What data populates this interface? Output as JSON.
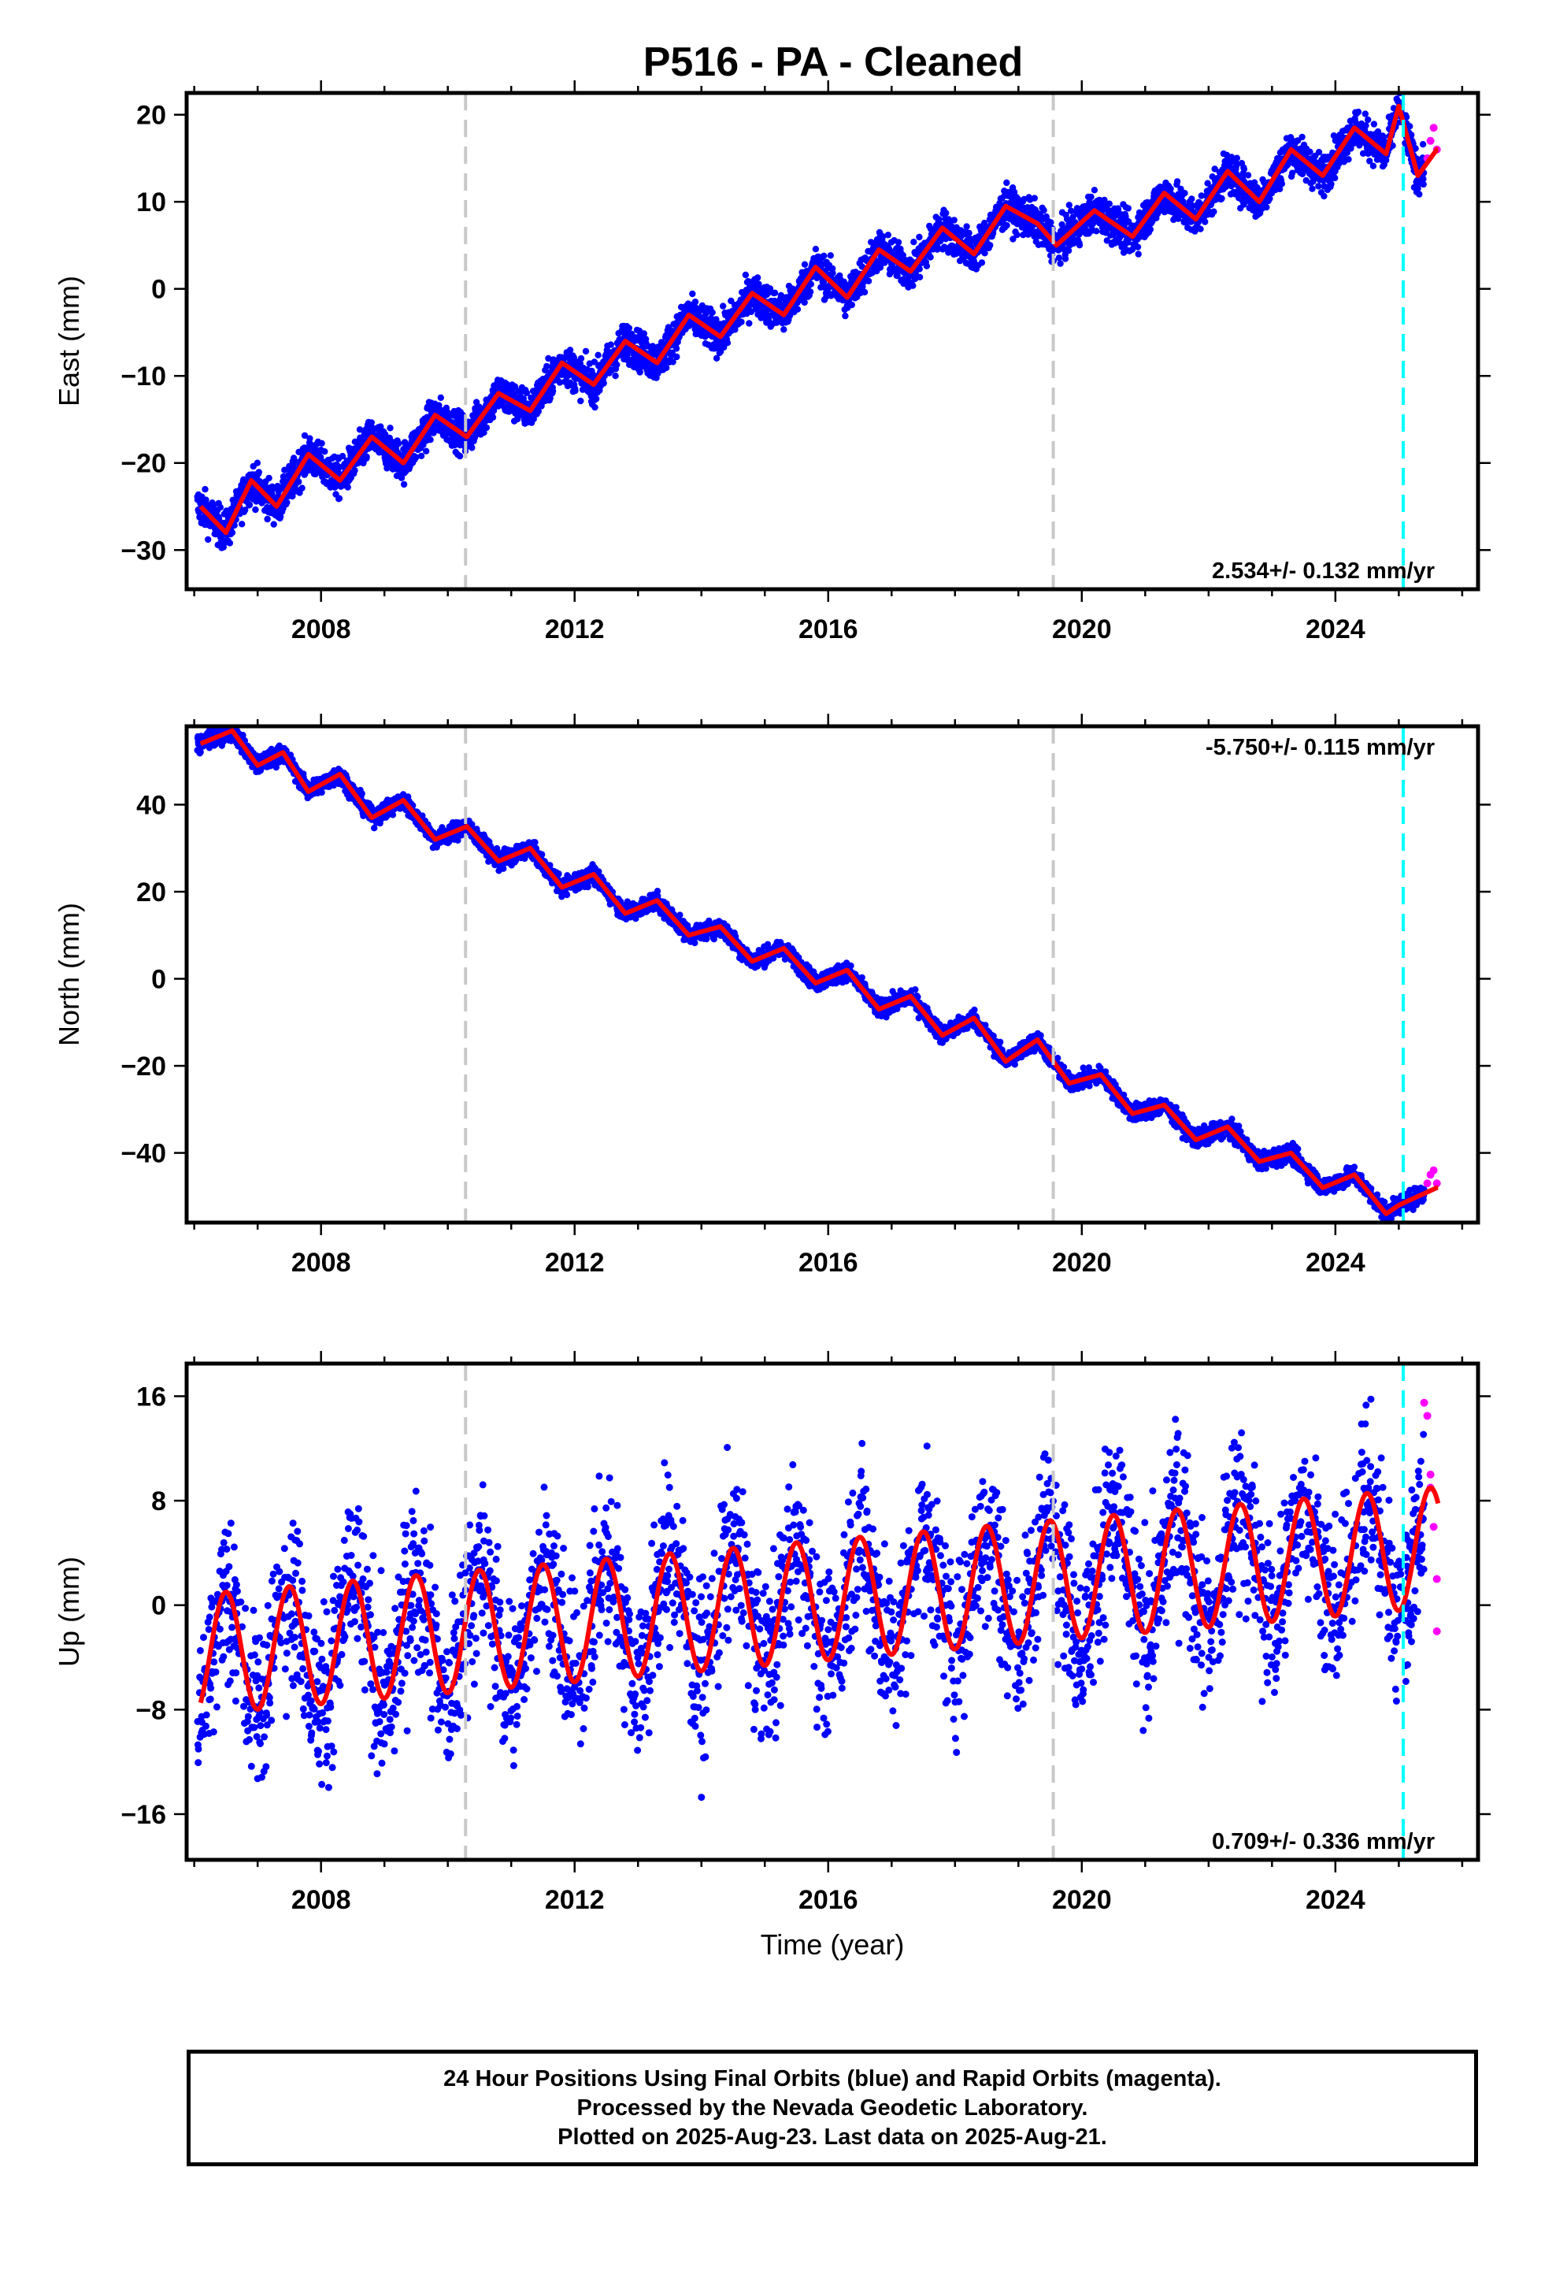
{
  "title": "P516  - PA - Cleaned",
  "colors": {
    "final_orbits": "#0000ff",
    "rapid_orbits": "#ff00ff",
    "model_fit": "#ff0000",
    "offset_equipment": "#c8c8c8",
    "offset_other": "#00ffff"
  },
  "footer": {
    "line1": "24 Hour Positions Using Final Orbits (blue) and Rapid Orbits (magenta).",
    "line2": "Processed by the Nevada Geodetic Laboratory.",
    "line3": "Plotted on 2025-Aug-23. Last data on 2025-Aug-21."
  },
  "chart_data": [
    {
      "type": "scatter",
      "component": "east",
      "ylabel": "East (mm)",
      "xlim": [
        2005.88,
        2026.25
      ],
      "ylim": [
        -34.5,
        22.5
      ],
      "xticks": [
        2008,
        2012,
        2016,
        2020,
        2024
      ],
      "yticks": [
        -30,
        -20,
        -10,
        0,
        10,
        20
      ],
      "rate_label": "2.534+/- 0.132 mm/yr",
      "rate_label_position": "bottom-right",
      "vertical_lines": [
        {
          "x": 2010.28,
          "style": "gray-dashed"
        },
        {
          "x": 2019.55,
          "style": "gray-dashed"
        },
        {
          "x": 2025.07,
          "style": "cyan-dashed"
        }
      ],
      "model_fit": {
        "x": [
          2006.1,
          2006.5,
          2006.9,
          2007.3,
          2007.8,
          2008.3,
          2008.8,
          2009.3,
          2009.8,
          2010.3,
          2010.8,
          2011.3,
          2011.8,
          2012.3,
          2012.8,
          2013.3,
          2013.8,
          2014.3,
          2014.8,
          2015.3,
          2015.8,
          2016.3,
          2016.8,
          2017.3,
          2017.8,
          2018.3,
          2018.8,
          2019.3,
          2019.6,
          2020.2,
          2020.8,
          2021.3,
          2021.8,
          2022.3,
          2022.8,
          2023.3,
          2023.8,
          2024.3,
          2024.8,
          2025.0,
          2025.3,
          2025.6
        ],
        "y": [
          -25,
          -28,
          -22,
          -25,
          -19,
          -22,
          -17,
          -20,
          -14.5,
          -17,
          -12,
          -14,
          -8.5,
          -11,
          -6,
          -8.5,
          -3,
          -5.5,
          -0.5,
          -3,
          2.5,
          -1,
          4.5,
          2,
          7,
          4,
          9.5,
          7.5,
          5,
          9,
          6,
          11,
          8,
          13.5,
          10,
          16,
          13,
          18.5,
          15.5,
          21,
          13,
          16
        ]
      },
      "rapid_points": {
        "x": [
          2025.45,
          2025.5,
          2025.55,
          2025.6
        ],
        "y": [
          15,
          17,
          18.5,
          16
        ]
      }
    },
    {
      "type": "scatter",
      "component": "north",
      "ylabel": "North (mm)",
      "xlim": [
        2005.88,
        2026.25
      ],
      "ylim": [
        -56,
        58
      ],
      "xticks": [
        2008,
        2012,
        2016,
        2020,
        2024
      ],
      "yticks": [
        -40,
        -20,
        0,
        20,
        40
      ],
      "rate_label": "-5.750+/- 0.115 mm/yr",
      "rate_label_position": "top-right",
      "vertical_lines": [
        {
          "x": 2010.28,
          "style": "gray-dashed"
        },
        {
          "x": 2019.55,
          "style": "gray-dashed"
        },
        {
          "x": 2025.07,
          "style": "cyan-dashed"
        }
      ],
      "model_fit": {
        "x": [
          2006.1,
          2006.6,
          2007.0,
          2007.4,
          2007.8,
          2008.3,
          2008.8,
          2009.3,
          2009.8,
          2010.3,
          2010.8,
          2011.3,
          2011.8,
          2012.3,
          2012.8,
          2013.3,
          2013.8,
          2014.3,
          2014.8,
          2015.3,
          2015.8,
          2016.3,
          2016.8,
          2017.3,
          2017.8,
          2018.3,
          2018.8,
          2019.3,
          2019.8,
          2020.3,
          2020.8,
          2021.3,
          2021.8,
          2022.3,
          2022.8,
          2023.3,
          2023.8,
          2024.3,
          2024.8,
          2025.0,
          2025.3,
          2025.6
        ],
        "y": [
          54,
          57,
          49,
          52,
          43,
          47,
          37,
          41,
          32,
          35,
          27,
          30,
          21,
          24,
          15,
          18,
          10,
          12,
          4,
          7,
          -1,
          2,
          -7,
          -4,
          -13,
          -9,
          -19,
          -14,
          -24,
          -22,
          -31,
          -29,
          -37,
          -34,
          -42,
          -40,
          -48,
          -45,
          -54,
          -52,
          -50,
          -48
        ]
      },
      "rapid_points": {
        "x": [
          2025.45,
          2025.5,
          2025.55,
          2025.6
        ],
        "y": [
          -47,
          -45,
          -44,
          -47
        ]
      }
    },
    {
      "type": "scatter",
      "component": "up",
      "ylabel": "Up (mm)",
      "xlabel": "Time (year)",
      "xlim": [
        2005.88,
        2026.25
      ],
      "ylim": [
        -19.5,
        18.5
      ],
      "xticks": [
        2008,
        2012,
        2016,
        2020,
        2024
      ],
      "yticks": [
        -16,
        -8,
        0,
        8,
        16
      ],
      "rate_label": "0.709+/- 0.336 mm/yr",
      "rate_label_position": "bottom-right",
      "vertical_lines": [
        {
          "x": 2010.28,
          "style": "gray-dashed"
        },
        {
          "x": 2019.55,
          "style": "gray-dashed"
        },
        {
          "x": 2025.07,
          "style": "cyan-dashed"
        }
      ],
      "seasonal_model": {
        "base": -3.8,
        "trend_per_year": 0.42,
        "amplitude": 4.6,
        "period_years": 1.0,
        "phase_years": 0.25
      },
      "rapid_points": {
        "x": [
          2025.4,
          2025.45,
          2025.5,
          2025.5,
          2025.55,
          2025.6,
          2025.6
        ],
        "y": [
          15.5,
          14.5,
          10,
          9,
          6,
          2,
          -2
        ]
      }
    }
  ]
}
